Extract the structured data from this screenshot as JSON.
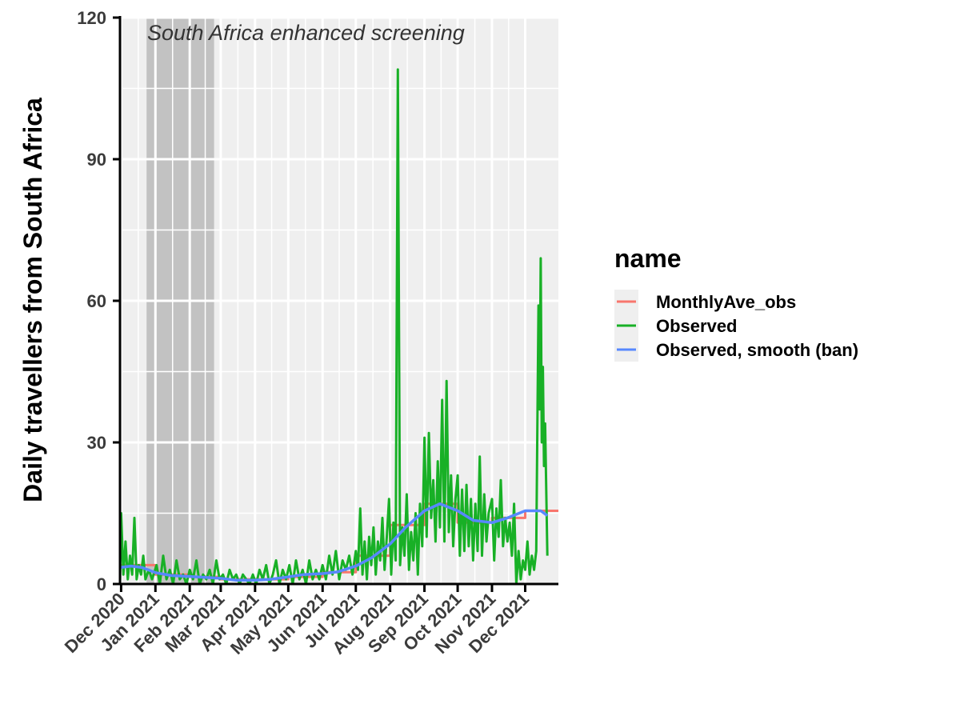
{
  "chart_data": {
    "type": "line",
    "title": "",
    "xlabel": "",
    "ylabel": "Daily travellers from South Africa",
    "ylim": [
      0,
      120
    ],
    "yticks": [
      0,
      30,
      60,
      90,
      120
    ],
    "xlim": [
      "2020-11-30",
      "2021-12-31"
    ],
    "xticks": [
      {
        "label": "Dec 2020",
        "date": "2020-12-01"
      },
      {
        "label": "Jan 2021",
        "date": "2021-01-01"
      },
      {
        "label": "Feb 2021",
        "date": "2021-02-01"
      },
      {
        "label": "Mar 2021",
        "date": "2021-03-01"
      },
      {
        "label": "Apr 2021",
        "date": "2021-04-01"
      },
      {
        "label": "May 2021",
        "date": "2021-05-01"
      },
      {
        "label": "Jun 2021",
        "date": "2021-06-01"
      },
      {
        "label": "Jul 2021",
        "date": "2021-07-01"
      },
      {
        "label": "Aug 2021",
        "date": "2021-08-01"
      },
      {
        "label": "Sep 2021",
        "date": "2021-09-01"
      },
      {
        "label": "Oct 2021",
        "date": "2021-10-01"
      },
      {
        "label": "Nov 2021",
        "date": "2021-11-01"
      },
      {
        "label": "Dec 2021",
        "date": "2021-12-01"
      }
    ],
    "grid": true,
    "background": "#efefef",
    "shaded_region": {
      "start": "2020-12-24",
      "end": "2021-02-23",
      "color": "#c2c2c2"
    },
    "annotation": "South Africa enhanced screening",
    "legend": {
      "title": "name",
      "position": "right",
      "entries": [
        "MonthlyAve_obs",
        "Observed",
        "Observed, smooth (ban)"
      ]
    },
    "series": [
      {
        "name": "MonthlyAve_obs",
        "color": "#f8766d",
        "step": true,
        "points": [
          {
            "x": "2020-12-01",
            "y": 4
          },
          {
            "x": "2021-01-01",
            "y": 2
          },
          {
            "x": "2021-02-01",
            "y": 1.5
          },
          {
            "x": "2021-03-01",
            "y": 1
          },
          {
            "x": "2021-04-01",
            "y": 1
          },
          {
            "x": "2021-05-01",
            "y": 1.5
          },
          {
            "x": "2021-06-01",
            "y": 2.5
          },
          {
            "x": "2021-07-01",
            "y": 6
          },
          {
            "x": "2021-08-01",
            "y": 12.5
          },
          {
            "x": "2021-09-01",
            "y": 17
          },
          {
            "x": "2021-10-01",
            "y": 13
          },
          {
            "x": "2021-11-01",
            "y": 14
          },
          {
            "x": "2021-12-01",
            "y": 15.5
          }
        ]
      },
      {
        "name": "Observed",
        "color": "#18b026",
        "points": [
          {
            "x": "2020-11-30",
            "y": 0
          },
          {
            "x": "2020-12-01",
            "y": 15
          },
          {
            "x": "2020-12-03",
            "y": 2
          },
          {
            "x": "2020-12-05",
            "y": 9
          },
          {
            "x": "2020-12-07",
            "y": 1
          },
          {
            "x": "2020-12-09",
            "y": 6
          },
          {
            "x": "2020-12-11",
            "y": 2
          },
          {
            "x": "2020-12-13",
            "y": 14
          },
          {
            "x": "2020-12-15",
            "y": 1
          },
          {
            "x": "2020-12-17",
            "y": 4
          },
          {
            "x": "2020-12-19",
            "y": 2
          },
          {
            "x": "2020-12-21",
            "y": 6
          },
          {
            "x": "2020-12-23",
            "y": 1
          },
          {
            "x": "2020-12-26",
            "y": 3
          },
          {
            "x": "2020-12-29",
            "y": 1
          },
          {
            "x": "2021-01-02",
            "y": 4
          },
          {
            "x": "2021-01-05",
            "y": 0
          },
          {
            "x": "2021-01-08",
            "y": 6
          },
          {
            "x": "2021-01-11",
            "y": 1
          },
          {
            "x": "2021-01-14",
            "y": 3
          },
          {
            "x": "2021-01-17",
            "y": 0
          },
          {
            "x": "2021-01-20",
            "y": 5
          },
          {
            "x": "2021-01-23",
            "y": 1
          },
          {
            "x": "2021-01-26",
            "y": 2
          },
          {
            "x": "2021-01-29",
            "y": 0
          },
          {
            "x": "2021-02-01",
            "y": 3
          },
          {
            "x": "2021-02-04",
            "y": 1
          },
          {
            "x": "2021-02-07",
            "y": 5
          },
          {
            "x": "2021-02-10",
            "y": 0
          },
          {
            "x": "2021-02-13",
            "y": 2
          },
          {
            "x": "2021-02-16",
            "y": 1
          },
          {
            "x": "2021-02-19",
            "y": 3
          },
          {
            "x": "2021-02-22",
            "y": 0
          },
          {
            "x": "2021-02-25",
            "y": 5
          },
          {
            "x": "2021-02-28",
            "y": 1
          },
          {
            "x": "2021-03-03",
            "y": 2
          },
          {
            "x": "2021-03-06",
            "y": 0
          },
          {
            "x": "2021-03-09",
            "y": 3
          },
          {
            "x": "2021-03-12",
            "y": 1
          },
          {
            "x": "2021-03-15",
            "y": 2
          },
          {
            "x": "2021-03-18",
            "y": 0
          },
          {
            "x": "2021-03-21",
            "y": 2
          },
          {
            "x": "2021-03-24",
            "y": 1
          },
          {
            "x": "2021-03-27",
            "y": 0
          },
          {
            "x": "2021-03-30",
            "y": 2
          },
          {
            "x": "2021-04-02",
            "y": 0
          },
          {
            "x": "2021-04-05",
            "y": 3
          },
          {
            "x": "2021-04-08",
            "y": 1
          },
          {
            "x": "2021-04-11",
            "y": 4
          },
          {
            "x": "2021-04-14",
            "y": 0
          },
          {
            "x": "2021-04-17",
            "y": 2
          },
          {
            "x": "2021-04-20",
            "y": 5
          },
          {
            "x": "2021-04-23",
            "y": 0
          },
          {
            "x": "2021-04-26",
            "y": 3
          },
          {
            "x": "2021-04-29",
            "y": 1
          },
          {
            "x": "2021-05-02",
            "y": 4
          },
          {
            "x": "2021-05-05",
            "y": 0
          },
          {
            "x": "2021-05-08",
            "y": 5
          },
          {
            "x": "2021-05-11",
            "y": 1
          },
          {
            "x": "2021-05-14",
            "y": 3
          },
          {
            "x": "2021-05-17",
            "y": 0
          },
          {
            "x": "2021-05-20",
            "y": 5
          },
          {
            "x": "2021-05-23",
            "y": 1
          },
          {
            "x": "2021-05-26",
            "y": 3
          },
          {
            "x": "2021-05-29",
            "y": 1
          },
          {
            "x": "2021-06-01",
            "y": 4
          },
          {
            "x": "2021-06-04",
            "y": 1
          },
          {
            "x": "2021-06-07",
            "y": 6
          },
          {
            "x": "2021-06-10",
            "y": 2
          },
          {
            "x": "2021-06-13",
            "y": 7
          },
          {
            "x": "2021-06-16",
            "y": 1
          },
          {
            "x": "2021-06-19",
            "y": 5
          },
          {
            "x": "2021-06-22",
            "y": 3
          },
          {
            "x": "2021-06-25",
            "y": 6
          },
          {
            "x": "2021-06-28",
            "y": 2
          },
          {
            "x": "2021-07-01",
            "y": 7
          },
          {
            "x": "2021-07-03",
            "y": 3
          },
          {
            "x": "2021-07-05",
            "y": 16
          },
          {
            "x": "2021-07-07",
            "y": 2
          },
          {
            "x": "2021-07-09",
            "y": 9
          },
          {
            "x": "2021-07-11",
            "y": 1
          },
          {
            "x": "2021-07-13",
            "y": 10
          },
          {
            "x": "2021-07-15",
            "y": 4
          },
          {
            "x": "2021-07-17",
            "y": 12
          },
          {
            "x": "2021-07-19",
            "y": 2
          },
          {
            "x": "2021-07-21",
            "y": 9
          },
          {
            "x": "2021-07-23",
            "y": 5
          },
          {
            "x": "2021-07-25",
            "y": 14
          },
          {
            "x": "2021-07-27",
            "y": 3
          },
          {
            "x": "2021-07-29",
            "y": 10
          },
          {
            "x": "2021-07-31",
            "y": 18
          },
          {
            "x": "2021-08-02",
            "y": 2
          },
          {
            "x": "2021-08-04",
            "y": 13
          },
          {
            "x": "2021-08-06",
            "y": 5
          },
          {
            "x": "2021-08-08",
            "y": 109
          },
          {
            "x": "2021-08-10",
            "y": 4
          },
          {
            "x": "2021-08-12",
            "y": 12
          },
          {
            "x": "2021-08-14",
            "y": 6
          },
          {
            "x": "2021-08-16",
            "y": 19
          },
          {
            "x": "2021-08-18",
            "y": 3
          },
          {
            "x": "2021-08-20",
            "y": 11
          },
          {
            "x": "2021-08-22",
            "y": 5
          },
          {
            "x": "2021-08-24",
            "y": 15
          },
          {
            "x": "2021-08-26",
            "y": 2
          },
          {
            "x": "2021-08-28",
            "y": 17
          },
          {
            "x": "2021-08-30",
            "y": 8
          },
          {
            "x": "2021-09-01",
            "y": 31
          },
          {
            "x": "2021-09-03",
            "y": 10
          },
          {
            "x": "2021-09-05",
            "y": 32
          },
          {
            "x": "2021-09-07",
            "y": 14
          },
          {
            "x": "2021-09-09",
            "y": 22
          },
          {
            "x": "2021-09-11",
            "y": 9
          },
          {
            "x": "2021-09-13",
            "y": 26
          },
          {
            "x": "2021-09-15",
            "y": 12
          },
          {
            "x": "2021-09-17",
            "y": 39
          },
          {
            "x": "2021-09-19",
            "y": 9
          },
          {
            "x": "2021-09-21",
            "y": 43
          },
          {
            "x": "2021-09-23",
            "y": 11
          },
          {
            "x": "2021-09-25",
            "y": 23
          },
          {
            "x": "2021-09-27",
            "y": 8
          },
          {
            "x": "2021-09-29",
            "y": 18
          },
          {
            "x": "2021-10-01",
            "y": 23
          },
          {
            "x": "2021-10-03",
            "y": 6
          },
          {
            "x": "2021-10-05",
            "y": 20
          },
          {
            "x": "2021-10-07",
            "y": 7
          },
          {
            "x": "2021-10-09",
            "y": 21
          },
          {
            "x": "2021-10-11",
            "y": 8
          },
          {
            "x": "2021-10-13",
            "y": 18
          },
          {
            "x": "2021-10-15",
            "y": 5
          },
          {
            "x": "2021-10-17",
            "y": 17
          },
          {
            "x": "2021-10-19",
            "y": 7
          },
          {
            "x": "2021-10-21",
            "y": 27
          },
          {
            "x": "2021-10-23",
            "y": 6
          },
          {
            "x": "2021-10-25",
            "y": 19
          },
          {
            "x": "2021-10-27",
            "y": 9
          },
          {
            "x": "2021-10-29",
            "y": 15
          },
          {
            "x": "2021-11-01",
            "y": 18
          },
          {
            "x": "2021-11-03",
            "y": 5
          },
          {
            "x": "2021-11-05",
            "y": 16
          },
          {
            "x": "2021-11-07",
            "y": 10
          },
          {
            "x": "2021-11-09",
            "y": 22
          },
          {
            "x": "2021-11-11",
            "y": 8
          },
          {
            "x": "2021-11-13",
            "y": 14
          },
          {
            "x": "2021-11-15",
            "y": 9
          },
          {
            "x": "2021-11-17",
            "y": 13
          },
          {
            "x": "2021-11-19",
            "y": 6
          },
          {
            "x": "2021-11-21",
            "y": 17
          },
          {
            "x": "2021-11-23",
            "y": 0
          },
          {
            "x": "2021-11-25",
            "y": 7
          },
          {
            "x": "2021-11-27",
            "y": 1
          },
          {
            "x": "2021-11-29",
            "y": 5
          },
          {
            "x": "2021-12-01",
            "y": 3
          },
          {
            "x": "2021-12-03",
            "y": 9
          },
          {
            "x": "2021-12-05",
            "y": 2
          },
          {
            "x": "2021-12-07",
            "y": 6
          },
          {
            "x": "2021-12-09",
            "y": 3
          },
          {
            "x": "2021-12-11",
            "y": 7
          },
          {
            "x": "2021-12-13",
            "y": 59
          },
          {
            "x": "2021-12-14",
            "y": 37
          },
          {
            "x": "2021-12-15",
            "y": 69
          },
          {
            "x": "2021-12-16",
            "y": 30
          },
          {
            "x": "2021-12-17",
            "y": 46
          },
          {
            "x": "2021-12-18",
            "y": 25
          },
          {
            "x": "2021-12-19",
            "y": 34
          },
          {
            "x": "2021-12-20",
            "y": 20
          },
          {
            "x": "2021-12-21",
            "y": 6
          }
        ]
      },
      {
        "name": "Observed, smooth (ban)",
        "color": "#5788ff",
        "points": [
          {
            "x": "2020-11-30",
            "y": 3.5
          },
          {
            "x": "2020-12-10",
            "y": 3.8
          },
          {
            "x": "2020-12-20",
            "y": 3.5
          },
          {
            "x": "2021-01-01",
            "y": 2.4
          },
          {
            "x": "2021-01-15",
            "y": 1.8
          },
          {
            "x": "2021-02-01",
            "y": 1.6
          },
          {
            "x": "2021-02-15",
            "y": 1.4
          },
          {
            "x": "2021-03-01",
            "y": 1.2
          },
          {
            "x": "2021-03-15",
            "y": 0.8
          },
          {
            "x": "2021-04-01",
            "y": 0.8
          },
          {
            "x": "2021-04-15",
            "y": 1.0
          },
          {
            "x": "2021-05-01",
            "y": 1.5
          },
          {
            "x": "2021-05-15",
            "y": 2.0
          },
          {
            "x": "2021-06-01",
            "y": 2.2
          },
          {
            "x": "2021-06-15",
            "y": 2.6
          },
          {
            "x": "2021-07-01",
            "y": 3.8
          },
          {
            "x": "2021-07-15",
            "y": 5.5
          },
          {
            "x": "2021-08-01",
            "y": 8.5
          },
          {
            "x": "2021-08-15",
            "y": 12.0
          },
          {
            "x": "2021-09-01",
            "y": 15.5
          },
          {
            "x": "2021-09-15",
            "y": 17.0
          },
          {
            "x": "2021-10-01",
            "y": 15.5
          },
          {
            "x": "2021-10-15",
            "y": 13.5
          },
          {
            "x": "2021-11-01",
            "y": 13.0
          },
          {
            "x": "2021-11-15",
            "y": 14.0
          },
          {
            "x": "2021-12-01",
            "y": 15.5
          },
          {
            "x": "2021-12-15",
            "y": 15.5
          },
          {
            "x": "2021-12-21",
            "y": 14.5
          }
        ]
      }
    ]
  }
}
